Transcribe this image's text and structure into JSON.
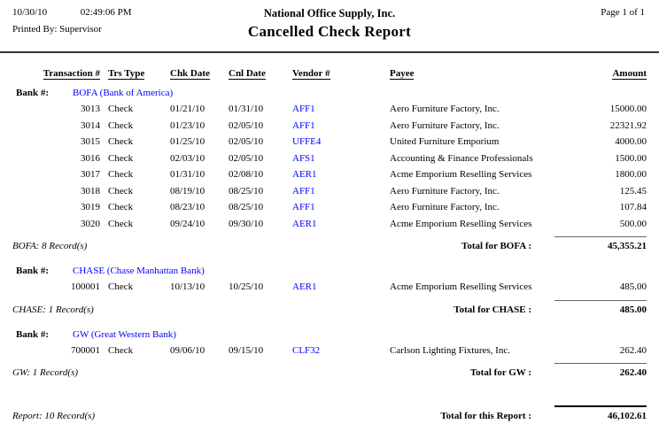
{
  "header": {
    "print_date": "10/30/10",
    "print_time": "02:49:06 PM",
    "printed_by": "Printed By: Supervisor",
    "company": "National Office Supply, Inc.",
    "title": "Cancelled Check Report",
    "page_label": "Page 1 of 1"
  },
  "columns": [
    "Transaction #",
    "Trs Type",
    "Chk Date",
    "Cnl Date",
    "Vendor #",
    "Payee",
    "Amount"
  ],
  "bank_label": "Bank #:",
  "banks": [
    {
      "code_display": "BOFA (Bank of America)",
      "rows": [
        {
          "txn": "3013",
          "type": "Check",
          "chk": "01/21/10",
          "cnl": "01/31/10",
          "vendor": "AFF1",
          "payee": "Aero Furniture Factory, Inc.",
          "amount": "15000.00"
        },
        {
          "txn": "3014",
          "type": "Check",
          "chk": "01/23/10",
          "cnl": "02/05/10",
          "vendor": "AFF1",
          "payee": "Aero Furniture Factory, Inc.",
          "amount": "22321.92"
        },
        {
          "txn": "3015",
          "type": "Check",
          "chk": "01/25/10",
          "cnl": "02/05/10",
          "vendor": "UFFE4",
          "payee": "United Furniture Emporium",
          "amount": "4000.00"
        },
        {
          "txn": "3016",
          "type": "Check",
          "chk": "02/03/10",
          "cnl": "02/05/10",
          "vendor": "AFS1",
          "payee": "Accounting & Finance Professionals",
          "amount": "1500.00"
        },
        {
          "txn": "3017",
          "type": "Check",
          "chk": "01/31/10",
          "cnl": "02/08/10",
          "vendor": "AER1",
          "payee": "Acme Emporium Reselling Services",
          "amount": "1800.00"
        },
        {
          "txn": "3018",
          "type": "Check",
          "chk": "08/19/10",
          "cnl": "08/25/10",
          "vendor": "AFF1",
          "payee": "Aero Furniture Factory, Inc.",
          "amount": "125.45"
        },
        {
          "txn": "3019",
          "type": "Check",
          "chk": "08/23/10",
          "cnl": "08/25/10",
          "vendor": "AFF1",
          "payee": "Aero Furniture Factory, Inc.",
          "amount": "107.84"
        },
        {
          "txn": "3020",
          "type": "Check",
          "chk": "09/24/10",
          "cnl": "09/30/10",
          "vendor": "AER1",
          "payee": "Acme Emporium Reselling Services",
          "amount": "500.00"
        }
      ],
      "record_note": "BOFA: 8 Record(s)",
      "total_label": "Total for BOFA :",
      "total_amount": "45,355.21"
    },
    {
      "code_display": "CHASE (Chase Manhattan Bank)",
      "rows": [
        {
          "txn": "100001",
          "type": "Check",
          "chk": "10/13/10",
          "cnl": "10/25/10",
          "vendor": "AER1",
          "payee": "Acme Emporium Reselling Services",
          "amount": "485.00"
        }
      ],
      "record_note": "CHASE: 1 Record(s)",
      "total_label": "Total for CHASE :",
      "total_amount": "485.00"
    },
    {
      "code_display": "GW (Great Western Bank)",
      "rows": [
        {
          "txn": "700001",
          "type": "Check",
          "chk": "09/06/10",
          "cnl": "09/15/10",
          "vendor": "CLF32",
          "payee": "Carlson Lighting Fixtures, Inc.",
          "amount": "262.40"
        }
      ],
      "record_note": "GW: 1 Record(s)",
      "total_label": "Total for GW :",
      "total_amount": "262.40"
    }
  ],
  "footer": {
    "record_note": "Report: 10 Record(s)",
    "total_label": "Total for this Report :",
    "total_amount": "46,102.61"
  },
  "colors": {
    "link_blue": "#0000FF",
    "rule_dark": "#333333",
    "total_line": "#666666"
  }
}
